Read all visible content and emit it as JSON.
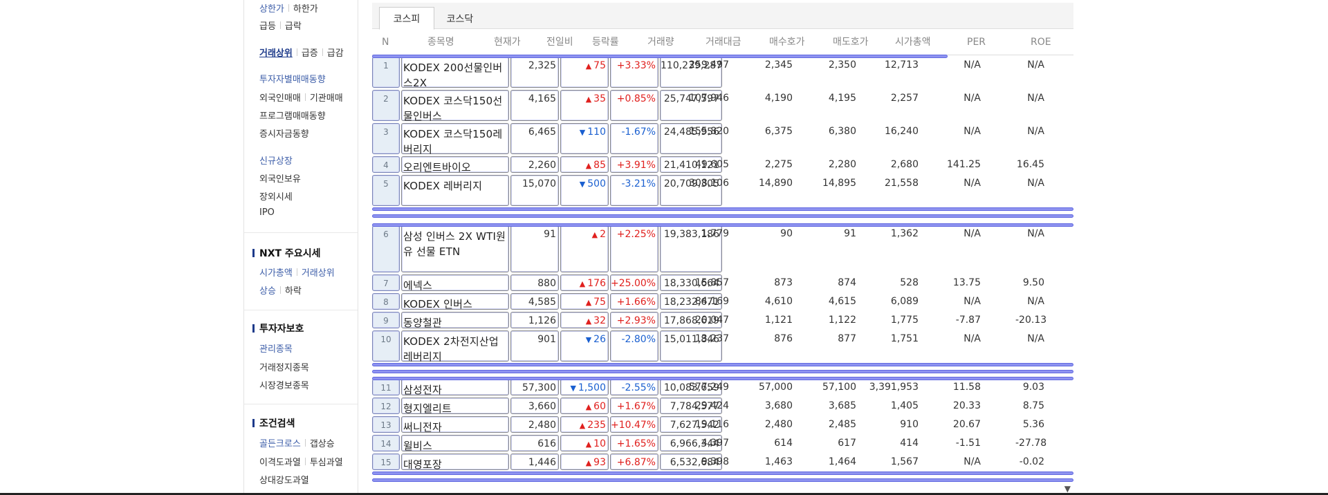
{
  "sidebar": {
    "r1": [
      "상한가",
      "하한가"
    ],
    "r2": [
      "급등",
      "급락"
    ],
    "r3": [
      "거래상위",
      "급증",
      "급감"
    ],
    "r4": "투자자별매매동향",
    "r5": [
      "외국인매매",
      "기관매매"
    ],
    "r6": "프로그램매매동향",
    "r7": "증시자금동향",
    "r8": "신규상장",
    "r9": "외국인보유",
    "r10": "장외시세",
    "r11": "IPO",
    "h_nxt": "NXT 주요시세",
    "r12": [
      "시가총액",
      "거래상위"
    ],
    "r13": [
      "상승",
      "하락"
    ],
    "h_protect": "투자자보호",
    "r14": "관리종목",
    "r15": "거래정지종목",
    "r16": "시장경보종목",
    "h_cond": "조건검색",
    "r17": [
      "골든크로스",
      "갭상승"
    ],
    "r18": [
      "이격도과열",
      "투심과열"
    ],
    "r19": "상대강도과열"
  },
  "tabs": [
    "코스피",
    "코스닥"
  ],
  "headers": [
    "N",
    "종목명",
    "현재가",
    "전일비",
    "등락률",
    "거래량",
    "거래대금",
    "매수호가",
    "매도호가",
    "시가총액",
    "PER",
    "ROE"
  ],
  "colors": {
    "up": "#e0201e",
    "down": "#1a5fd0",
    "accent": "#1d3a8a",
    "separator": "#6068e0"
  },
  "rows": [
    {
      "n": "1",
      "name": "KODEX 200선물인버스2X",
      "price": "2,325",
      "dir": "up",
      "chg": "75",
      "rate": "+3.33%",
      "vol": "110,239,287",
      "amt": "259,497",
      "bid": "2,345",
      "ask": "2,350",
      "cap": "12,713",
      "per": "N/A",
      "roe": "N/A"
    },
    {
      "n": "2",
      "name": "KODEX 코스닥150선물인버스",
      "price": "4,165",
      "dir": "up",
      "chg": "35",
      "rate": "+0.85%",
      "vol": "25,747,597",
      "amt": "107,946",
      "bid": "4,190",
      "ask": "4,195",
      "cap": "2,257",
      "per": "N/A",
      "roe": "N/A"
    },
    {
      "n": "3",
      "name": "KODEX 코스닥150레버리지",
      "price": "6,465",
      "dir": "down",
      "chg": "110",
      "rate": "-1.67%",
      "vol": "24,485,956",
      "amt": "155,820",
      "bid": "6,375",
      "ask": "6,380",
      "cap": "16,240",
      "per": "N/A",
      "roe": "N/A"
    },
    {
      "n": "4",
      "name": "오리엔트바이오",
      "price": "2,260",
      "dir": "up",
      "chg": "85",
      "rate": "+3.91%",
      "vol": "21,410,121",
      "amt": "49,605",
      "bid": "2,275",
      "ask": "2,280",
      "cap": "2,680",
      "per": "141.25",
      "roe": "16.45"
    },
    {
      "n": "5",
      "name": "KODEX 레버리지",
      "price": "15,070",
      "dir": "down",
      "chg": "500",
      "rate": "-3.21%",
      "vol": "20,709,305",
      "amt": "308,106",
      "bid": "14,890",
      "ask": "14,895",
      "cap": "21,558",
      "per": "N/A",
      "roe": "N/A"
    },
    {
      "n": "6",
      "name": "삼성 인버스 2X WTI원유 선물 ETN",
      "price": "91",
      "dir": "up",
      "chg": "2",
      "rate": "+2.25%",
      "vol": "19,383,186",
      "amt": "1,779",
      "bid": "90",
      "ask": "91",
      "cap": "1,362",
      "per": "N/A",
      "roe": "N/A"
    },
    {
      "n": "7",
      "name": "에넥스",
      "price": "880",
      "dir": "up",
      "chg": "176",
      "rate": "+25.00%",
      "vol": "18,330,664",
      "amt": "15,857",
      "bid": "873",
      "ask": "874",
      "cap": "528",
      "per": "13.75",
      "roe": "9.50"
    },
    {
      "n": "8",
      "name": "KODEX 인버스",
      "price": "4,585",
      "dir": "up",
      "chg": "75",
      "rate": "+1.66%",
      "vol": "18,232,671",
      "amt": "84,169",
      "bid": "4,610",
      "ask": "4,615",
      "cap": "6,089",
      "per": "N/A",
      "roe": "N/A"
    },
    {
      "n": "9",
      "name": "동양철관",
      "price": "1,126",
      "dir": "up",
      "chg": "32",
      "rate": "+2.93%",
      "vol": "17,868,619",
      "amt": "20,047",
      "bid": "1,121",
      "ask": "1,122",
      "cap": "1,775",
      "per": "-7.87",
      "roe": "-20.13"
    },
    {
      "n": "10",
      "name": "KODEX 2차전지산업레버리지",
      "price": "901",
      "dir": "down",
      "chg": "26",
      "rate": "-2.80%",
      "vol": "15,011,846",
      "amt": "13,237",
      "bid": "876",
      "ask": "877",
      "cap": "1,751",
      "per": "N/A",
      "roe": "N/A"
    },
    {
      "n": "11",
      "name": "삼성전자",
      "price": "57,300",
      "dir": "down",
      "chg": "1,500",
      "rate": "-2.55%",
      "vol": "10,083,659",
      "amt": "577,249",
      "bid": "57,000",
      "ask": "57,100",
      "cap": "3,391,953",
      "per": "11.58",
      "roe": "9.03"
    },
    {
      "n": "12",
      "name": "형지엘리트",
      "price": "3,660",
      "dir": "up",
      "chg": "60",
      "rate": "+1.67%",
      "vol": "7,784,577",
      "amt": "29,424",
      "bid": "3,680",
      "ask": "3,685",
      "cap": "1,405",
      "per": "20.33",
      "roe": "8.75"
    },
    {
      "n": "13",
      "name": "써니전자",
      "price": "2,480",
      "dir": "up",
      "chg": "235",
      "rate": "+10.47%",
      "vol": "7,627,542",
      "amt": "19,116",
      "bid": "2,480",
      "ask": "2,485",
      "cap": "910",
      "per": "20.67",
      "roe": "5.36"
    },
    {
      "n": "14",
      "name": "윌비스",
      "price": "616",
      "dir": "up",
      "chg": "10",
      "rate": "+1.65%",
      "vol": "6,966,344",
      "amt": "4,397",
      "bid": "614",
      "ask": "617",
      "cap": "414",
      "per": "-1.51",
      "roe": "-27.78"
    },
    {
      "n": "15",
      "name": "대영포장",
      "price": "1,446",
      "dir": "up",
      "chg": "93",
      "rate": "+6.87%",
      "vol": "6,532,684",
      "amt": "9,398",
      "bid": "1,463",
      "ask": "1,464",
      "cap": "1,567",
      "per": "N/A",
      "roe": "-0.02"
    }
  ]
}
